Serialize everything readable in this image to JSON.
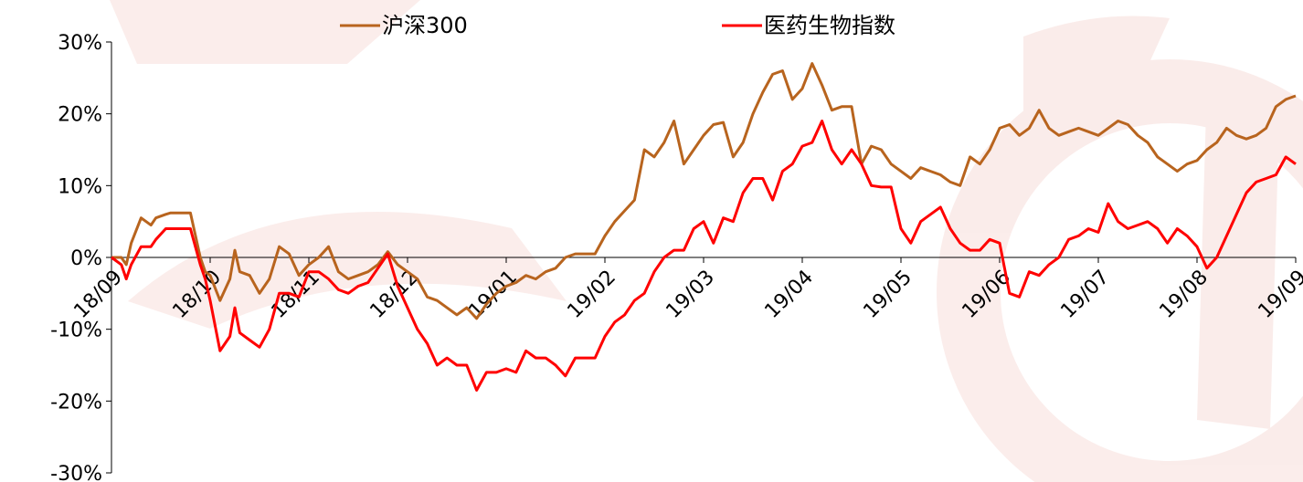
{
  "chart_data": {
    "type": "line",
    "title": "",
    "xlabel": "",
    "ylabel": "",
    "ylim": [
      -30,
      30
    ],
    "y_ticks": [
      30,
      20,
      10,
      0,
      -10,
      -20,
      -30
    ],
    "y_tick_labels": [
      "30%",
      "20%",
      "10%",
      "0%",
      "-10%",
      "-20%",
      "-30%"
    ],
    "x_range": [
      0,
      12
    ],
    "x_ticks": [
      0,
      1,
      2,
      3,
      4,
      5,
      6,
      7,
      8,
      9,
      10,
      11,
      12
    ],
    "x_tick_labels": [
      "18/09",
      "18/10",
      "18/11",
      "18/12",
      "19/01",
      "19/02",
      "19/03",
      "19/04",
      "19/05",
      "19/06",
      "19/07",
      "19/08",
      "19/09"
    ],
    "grid": false,
    "legend_position": "top",
    "series": [
      {
        "name": "沪深300",
        "color": "#b8641e",
        "x": [
          0.0,
          0.1,
          0.15,
          0.2,
          0.3,
          0.4,
          0.45,
          0.55,
          0.6,
          0.7,
          0.8,
          0.9,
          0.95,
          1.0,
          1.1,
          1.2,
          1.25,
          1.3,
          1.4,
          1.5,
          1.6,
          1.7,
          1.8,
          1.9,
          2.0,
          2.1,
          2.2,
          2.3,
          2.4,
          2.5,
          2.6,
          2.7,
          2.8,
          2.9,
          3.0,
          3.1,
          3.2,
          3.3,
          3.4,
          3.5,
          3.6,
          3.7,
          3.8,
          3.9,
          4.0,
          4.1,
          4.2,
          4.3,
          4.4,
          4.5,
          4.6,
          4.7,
          4.8,
          4.9,
          5.0,
          5.1,
          5.2,
          5.3,
          5.4,
          5.5,
          5.6,
          5.7,
          5.8,
          5.9,
          6.0,
          6.1,
          6.2,
          6.3,
          6.4,
          6.5,
          6.6,
          6.7,
          6.8,
          6.9,
          7.0,
          7.1,
          7.2,
          7.3,
          7.4,
          7.5,
          7.6,
          7.7,
          7.8,
          7.9,
          8.0,
          8.1,
          8.2,
          8.3,
          8.4,
          8.5,
          8.6,
          8.7,
          8.8,
          8.9,
          9.0,
          9.1,
          9.2,
          9.3,
          9.4,
          9.5,
          9.6,
          9.7,
          9.8,
          9.9,
          10.0,
          10.1,
          10.2,
          10.3,
          10.4,
          10.5,
          10.6,
          10.7,
          10.8,
          10.9,
          11.0,
          11.1,
          11.2,
          11.3,
          11.4,
          11.5,
          11.6,
          11.7,
          11.8,
          11.9,
          12.0
        ],
        "values": [
          0.0,
          0.0,
          -1.0,
          2.0,
          5.5,
          4.5,
          5.5,
          6.0,
          6.2,
          6.2,
          6.2,
          0.0,
          -2.0,
          -2.5,
          -6.0,
          -3.0,
          1.0,
          -2.0,
          -2.5,
          -5.0,
          -3.0,
          1.5,
          0.5,
          -2.5,
          -1.0,
          0.0,
          1.5,
          -2.0,
          -3.0,
          -2.5,
          -2.0,
          -1.0,
          0.8,
          -1.0,
          -2.0,
          -3.0,
          -5.5,
          -6.0,
          -7.0,
          -8.0,
          -7.0,
          -8.5,
          -6.5,
          -5.0,
          -4.0,
          -3.5,
          -2.5,
          -3.0,
          -2.0,
          -1.5,
          0.0,
          0.5,
          0.5,
          0.5,
          3.0,
          5.0,
          6.5,
          8.0,
          15.0,
          14.0,
          16.0,
          19.0,
          13.0,
          15.0,
          17.0,
          18.5,
          18.8,
          14.0,
          16.0,
          20.0,
          23.0,
          25.5,
          26.0,
          22.0,
          23.5,
          27.0,
          24.0,
          20.5,
          21.0,
          21.0,
          13.0,
          15.5,
          15.0,
          13.0,
          12.0,
          11.0,
          12.5,
          12.0,
          11.5,
          10.5,
          10.0,
          14.0,
          13.0,
          15.0,
          18.0,
          18.5,
          17.0,
          18.0,
          20.5,
          18.0,
          17.0,
          17.5,
          18.0,
          17.5,
          17.0,
          18.0,
          19.0,
          18.5,
          17.0,
          16.0,
          14.0,
          13.0,
          12.0,
          13.0,
          13.5,
          15.0,
          16.0,
          18.0,
          17.0,
          16.5,
          17.0,
          18.0,
          21.0,
          22.0,
          22.5
        ]
      },
      {
        "name": "医药生物指数",
        "color": "#ff0000",
        "x": [
          0.0,
          0.1,
          0.15,
          0.2,
          0.3,
          0.4,
          0.45,
          0.55,
          0.6,
          0.7,
          0.8,
          0.9,
          0.95,
          1.0,
          1.1,
          1.2,
          1.25,
          1.3,
          1.4,
          1.5,
          1.6,
          1.7,
          1.8,
          1.9,
          2.0,
          2.1,
          2.2,
          2.3,
          2.4,
          2.5,
          2.6,
          2.7,
          2.8,
          2.9,
          3.0,
          3.1,
          3.2,
          3.3,
          3.4,
          3.5,
          3.6,
          3.7,
          3.8,
          3.9,
          4.0,
          4.1,
          4.2,
          4.3,
          4.4,
          4.5,
          4.6,
          4.7,
          4.8,
          4.9,
          5.0,
          5.1,
          5.2,
          5.3,
          5.4,
          5.5,
          5.6,
          5.7,
          5.8,
          5.9,
          6.0,
          6.1,
          6.2,
          6.3,
          6.4,
          6.5,
          6.6,
          6.7,
          6.8,
          6.9,
          7.0,
          7.1,
          7.2,
          7.3,
          7.4,
          7.5,
          7.6,
          7.7,
          7.8,
          7.9,
          8.0,
          8.1,
          8.2,
          8.3,
          8.4,
          8.5,
          8.6,
          8.7,
          8.8,
          8.9,
          9.0,
          9.1,
          9.2,
          9.3,
          9.4,
          9.5,
          9.6,
          9.7,
          9.8,
          9.9,
          10.0,
          10.1,
          10.2,
          10.3,
          10.4,
          10.5,
          10.6,
          10.7,
          10.8,
          10.9,
          11.0,
          11.1,
          11.2,
          11.3,
          11.4,
          11.5,
          11.6,
          11.7,
          11.8,
          11.9,
          12.0
        ],
        "values": [
          0.0,
          -1.0,
          -3.0,
          -1.0,
          1.5,
          1.5,
          2.5,
          4.0,
          4.0,
          4.0,
          4.0,
          -1.0,
          -3.0,
          -6.0,
          -13.0,
          -11.0,
          -7.0,
          -10.5,
          -11.5,
          -12.5,
          -10.0,
          -5.0,
          -5.0,
          -5.5,
          -2.0,
          -2.0,
          -3.0,
          -4.5,
          -5.0,
          -4.0,
          -3.5,
          -1.5,
          0.5,
          -4.0,
          -7.0,
          -10.0,
          -12.0,
          -15.0,
          -14.0,
          -15.0,
          -15.0,
          -18.5,
          -16.0,
          -16.0,
          -15.5,
          -16.0,
          -13.0,
          -14.0,
          -14.0,
          -15.0,
          -16.5,
          -14.0,
          -14.0,
          -14.0,
          -11.0,
          -9.0,
          -8.0,
          -6.0,
          -5.0,
          -2.0,
          0.0,
          1.0,
          1.0,
          4.0,
          5.0,
          2.0,
          5.5,
          5.0,
          9.0,
          11.0,
          11.0,
          8.0,
          12.0,
          13.0,
          15.5,
          16.0,
          19.0,
          15.0,
          13.0,
          15.0,
          13.0,
          10.0,
          9.8,
          9.8,
          4.0,
          2.0,
          5.0,
          6.0,
          7.0,
          4.0,
          2.0,
          1.0,
          1.0,
          2.5,
          2.0,
          -5.0,
          -5.5,
          -2.0,
          -2.5,
          -1.0,
          0.0,
          2.5,
          3.0,
          4.0,
          3.5,
          7.5,
          5.0,
          4.0,
          4.5,
          5.0,
          4.0,
          2.0,
          4.0,
          3.0,
          1.5,
          -1.5,
          0.0,
          3.0,
          6.0,
          9.0,
          10.5,
          11.0,
          11.5,
          14.0,
          13.0
        ]
      }
    ]
  }
}
